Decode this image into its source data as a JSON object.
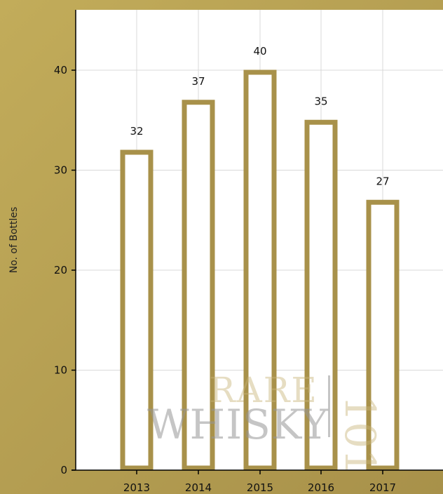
{
  "chart_data": {
    "type": "bar",
    "categories": [
      "2013",
      "2014",
      "2015",
      "2016",
      "2017"
    ],
    "values": [
      32,
      37,
      40,
      35,
      27
    ],
    "ylabel": "No. of Bottles",
    "xlabel": "",
    "ylim": [
      0,
      40
    ],
    "yticks": [
      0,
      10,
      20,
      30,
      40
    ],
    "grid": true,
    "bar_color": "#a8914a",
    "bar_fill": "#ffffff"
  },
  "watermark": {
    "line1": "RARE",
    "line2": "WHISKY",
    "number": "101"
  }
}
